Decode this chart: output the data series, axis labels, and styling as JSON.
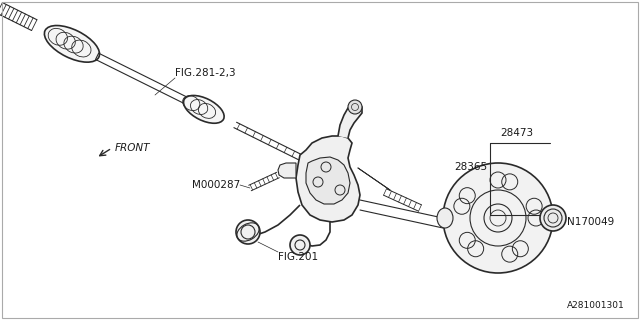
{
  "bg_color": "#ffffff",
  "border_color": "#cccccc",
  "line_color": "#2a2a2a",
  "text_color": "#1a1a1a",
  "fig_width": 6.4,
  "fig_height": 3.2,
  "dpi": 100,
  "labels": {
    "fig_281": "FIG.281-2,3",
    "fig_201": "FIG.201",
    "m000287": "M000287",
    "p28473": "28473",
    "p28365": "28365",
    "n170049": "N170049",
    "front": "FRONT",
    "diagram_id": "A281001301"
  }
}
